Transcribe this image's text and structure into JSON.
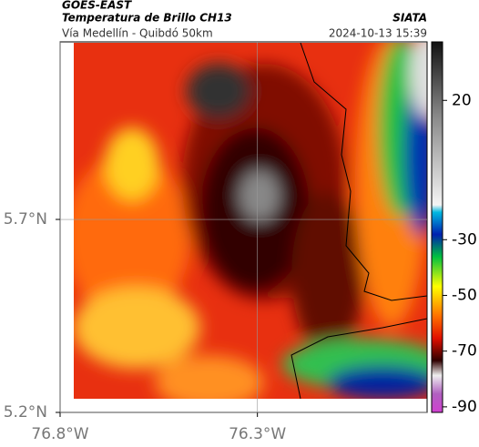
{
  "map": {
    "title": "GOES-EAST",
    "subtitle": "Temperatura de Brillo CH13",
    "region": "Vía Medellín - Quibdó 50km",
    "source": "SIATA",
    "timestamp": "2024-10-13 15:39",
    "xlim": [
      -76.8,
      -75.87
    ],
    "ylim": [
      5.2,
      6.16
    ],
    "xticks": [
      {
        "value": -76.8,
        "label": "76.8°W"
      },
      {
        "value": -76.3,
        "label": "76.3°W"
      }
    ],
    "yticks": [
      {
        "value": 5.2,
        "label": "5.2°N"
      },
      {
        "value": 5.7,
        "label": "5.7°N"
      }
    ],
    "colorbar": {
      "lim": [
        -92,
        41
      ],
      "ticks": [
        20,
        -30,
        -50,
        -70,
        -90
      ]
    }
  }
}
